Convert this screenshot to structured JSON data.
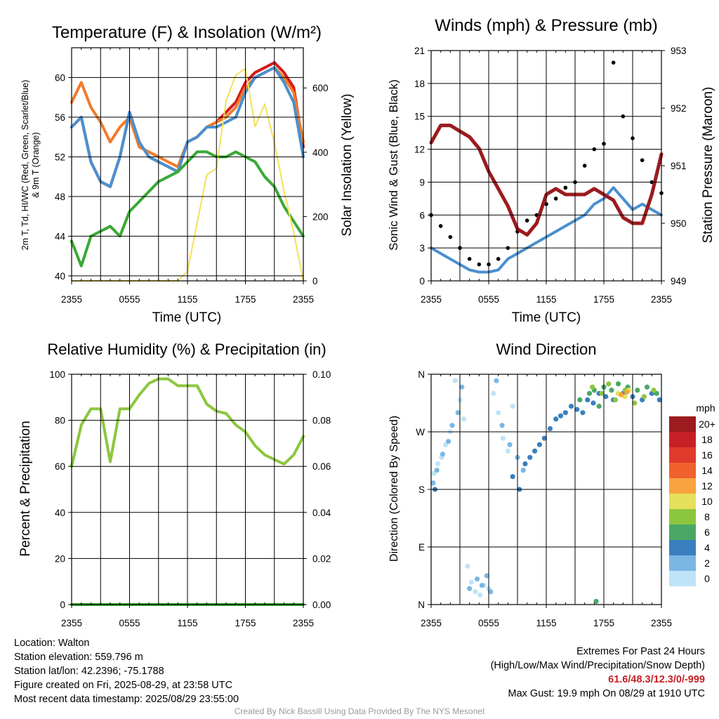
{
  "panels": {
    "temp": {
      "title": "Temperature (F) & Insolation (W/m²)",
      "ylabel_line1": "2m T, Td, HI/WC (Red, Green, Scarlet/Blue)",
      "ylabel_line2": "& 9m T (Orange)",
      "y2label": "Solar Insolation (Yellow)",
      "xlabel": "Time (UTC)"
    },
    "wind": {
      "title": "Winds (mph) & Pressure (mb)",
      "ylabel": "Sonic Wind & Gust (Blue, Black)",
      "y2label": "Station Pressure (Maroon)",
      "xlabel": "Time (UTC)"
    },
    "rh": {
      "title": "Relative Humidity (%) & Precipitation (in)",
      "ylabel": "Percent & Precipitation"
    },
    "dir": {
      "title": "Wind Direction",
      "ylabel": "Direction (Colored By Speed)",
      "legend_title": "mph"
    }
  },
  "chart_data": [
    {
      "type": "line",
      "title": "Temperature (F) & Insolation (W/m2)",
      "xlabel": "Time (UTC)",
      "ylabel": "2m T, Td, HI/WC (Red, Green, Scarlet/Blue) & 9m T (Orange)",
      "y2label": "Solar Insolation (Yellow)",
      "x_ticks": [
        "2355",
        "0555",
        "1155",
        "1755",
        "2355"
      ],
      "x_hours": [
        0,
        1,
        2,
        3,
        4,
        5,
        6,
        7,
        8,
        9,
        10,
        11,
        12,
        13,
        14,
        15,
        16,
        17,
        18,
        19,
        20,
        21,
        22,
        23,
        24
      ],
      "ylim": [
        39.5,
        63
      ],
      "y_ticks": [
        40,
        44,
        48,
        52,
        56,
        60
      ],
      "y2lim": [
        0,
        725
      ],
      "y2_ticks": [
        0,
        200,
        400,
        600
      ],
      "grid": true,
      "series": [
        {
          "name": "2m T",
          "color": "#d7191c",
          "axis": "left",
          "values": [
            55.0,
            56.0,
            51.5,
            49.5,
            49.0,
            52.0,
            56.5,
            53.5,
            52.0,
            51.5,
            51.0,
            50.5,
            53.5,
            54.0,
            55.0,
            55.5,
            56.5,
            57.5,
            59.5,
            60.5,
            61.0,
            61.5,
            60.5,
            59.0,
            53.0
          ]
        },
        {
          "name": "9m T",
          "color": "#f07c29",
          "axis": "left",
          "values": [
            57.5,
            59.5,
            57.0,
            55.5,
            53.5,
            55.0,
            56.0,
            53.0,
            52.5,
            52.0,
            51.5,
            51.0,
            53.5,
            54.0,
            55.0,
            55.5,
            56.0,
            57.0,
            59.0,
            60.0,
            60.5,
            61.0,
            60.0,
            58.5,
            53.5
          ]
        },
        {
          "name": "HI/WC",
          "color": "#4a90cf",
          "axis": "left",
          "values": [
            55.0,
            56.0,
            51.5,
            49.5,
            49.0,
            52.0,
            56.5,
            53.5,
            52.0,
            51.5,
            51.0,
            50.5,
            53.5,
            54.0,
            55.0,
            55.0,
            55.5,
            56.0,
            58.5,
            60.0,
            60.5,
            61.0,
            59.5,
            57.5,
            52.0
          ]
        },
        {
          "name": "Td",
          "color": "#3aa935",
          "axis": "left",
          "values": [
            43.5,
            41.0,
            44.0,
            44.5,
            45.0,
            44.0,
            46.5,
            47.5,
            48.5,
            49.5,
            50.0,
            50.5,
            51.5,
            52.5,
            52.5,
            52.0,
            52.0,
            52.5,
            52.0,
            51.5,
            50.0,
            49.0,
            47.0,
            45.5,
            44.0
          ]
        },
        {
          "name": "Solar Insolation",
          "color": "#f5e05a",
          "axis": "right",
          "values": [
            0,
            0,
            0,
            0,
            0,
            0,
            0,
            0,
            0,
            0,
            0,
            0,
            30,
            180,
            330,
            350,
            560,
            640,
            660,
            480,
            550,
            430,
            280,
            150,
            0
          ]
        }
      ]
    },
    {
      "type": "line",
      "title": "Winds (mph) & Pressure (mb)",
      "xlabel": "Time (UTC)",
      "ylabel": "Sonic Wind & Gust (Blue, Black)",
      "y2label": "Station Pressure (Maroon)",
      "x_ticks": [
        "2355",
        "0555",
        "1155",
        "1755",
        "2355"
      ],
      "x_hours": [
        0,
        1,
        2,
        3,
        4,
        5,
        6,
        7,
        8,
        9,
        10,
        11,
        12,
        13,
        14,
        15,
        16,
        17,
        18,
        19,
        20,
        21,
        22,
        23,
        24
      ],
      "ylim": [
        0,
        21
      ],
      "y_ticks": [
        0,
        3,
        6,
        9,
        12,
        15,
        18,
        21
      ],
      "y2lim": [
        949,
        953
      ],
      "y2_ticks": [
        949,
        950,
        951,
        952,
        953
      ],
      "grid": true,
      "series": [
        {
          "name": "Sonic Wind",
          "color": "#4a90cf",
          "axis": "left",
          "values": [
            3.0,
            2.5,
            2.0,
            1.5,
            1.0,
            0.8,
            0.8,
            1.0,
            2.0,
            2.5,
            3.0,
            3.5,
            4.0,
            4.5,
            5.0,
            5.5,
            6.0,
            7.0,
            7.5,
            8.5,
            7.5,
            6.5,
            7.0,
            6.5,
            6.0
          ]
        },
        {
          "name": "Gust",
          "color": "#000000",
          "axis": "left",
          "values": [
            6.0,
            5.0,
            4.0,
            3.0,
            2.0,
            1.5,
            1.5,
            2.0,
            3.0,
            4.5,
            5.5,
            6.0,
            7.0,
            7.5,
            8.5,
            9.0,
            10.5,
            12.0,
            12.5,
            19.9,
            15.0,
            13.0,
            11.0,
            9.0,
            8.0
          ]
        },
        {
          "name": "Station Pressure",
          "color": "#9b1b1e",
          "axis": "right",
          "values": [
            951.4,
            951.7,
            951.7,
            951.6,
            951.5,
            951.3,
            950.9,
            950.6,
            950.3,
            949.9,
            949.8,
            950.0,
            950.5,
            950.6,
            950.5,
            950.5,
            950.5,
            950.6,
            950.5,
            950.4,
            950.1,
            950.0,
            950.0,
            950.5,
            951.2
          ]
        }
      ]
    },
    {
      "type": "line",
      "title": "Relative Humidity (%) & Precipitation (in)",
      "ylabel": "Percent & Precipitation",
      "x_ticks": [
        "2355",
        "0555",
        "1155",
        "1755",
        "2355"
      ],
      "x_hours": [
        0,
        1,
        2,
        3,
        4,
        5,
        6,
        7,
        8,
        9,
        10,
        11,
        12,
        13,
        14,
        15,
        16,
        17,
        18,
        19,
        20,
        21,
        22,
        23,
        24
      ],
      "ylim": [
        0,
        100
      ],
      "y_ticks": [
        0,
        20,
        40,
        60,
        80,
        100
      ],
      "y2lim": [
        0,
        0.1
      ],
      "y2_ticks": [
        "0.00",
        "0.02",
        "0.04",
        "0.06",
        "0.08",
        "0.10"
      ],
      "grid": true,
      "series": [
        {
          "name": "Relative Humidity",
          "color": "#8cc63f",
          "axis": "left",
          "values": [
            60,
            78,
            85,
            85,
            62,
            85,
            85,
            91,
            96,
            98,
            98,
            95,
            95,
            95,
            87,
            84,
            83,
            78,
            75,
            69,
            65,
            63,
            61,
            65,
            73
          ]
        },
        {
          "name": "Precipitation",
          "color": "#3aa935",
          "axis": "right",
          "values": [
            0,
            0,
            0,
            0,
            0,
            0,
            0,
            0,
            0,
            0,
            0,
            0,
            0,
            0,
            0,
            0,
            0,
            0,
            0,
            0,
            0,
            0,
            0,
            0,
            0
          ]
        }
      ]
    },
    {
      "type": "scatter",
      "title": "Wind Direction",
      "ylabel": "Direction (Colored By Speed)",
      "x_ticks": [
        "2355",
        "0555",
        "1155",
        "1755",
        "2355"
      ],
      "y_ticks": [
        "N",
        "E",
        "S",
        "W",
        "N"
      ],
      "ylim": [
        0,
        360
      ],
      "grid": true,
      "legend": {
        "title": "mph",
        "position": "right",
        "labels": [
          "20+",
          "18",
          "16",
          "14",
          "12",
          "10",
          "8",
          "6",
          "4",
          "2",
          "0"
        ],
        "colors": [
          "#9b1b1e",
          "#c62026",
          "#e03a2c",
          "#f0612d",
          "#f7a33f",
          "#e6e05a",
          "#8cc63f",
          "#4aa866",
          "#3a7fbf",
          "#7ab7e3",
          "#bfe3f7"
        ]
      },
      "series": [
        {
          "name": "2 mph",
          "color": "#bfe3f7",
          "points": [
            [
              0.3,
              205
            ],
            [
              0.7,
              220
            ],
            [
              1.1,
              230
            ],
            [
              1.5,
              250
            ],
            [
              2.0,
              270
            ],
            [
              2.5,
              350
            ],
            [
              3.0,
              320
            ],
            [
              3.4,
              290
            ],
            [
              3.8,
              60
            ],
            [
              4.2,
              35
            ],
            [
              4.6,
              20
            ],
            [
              5.1,
              15
            ],
            [
              5.5,
              30
            ],
            [
              6.0,
              25
            ],
            [
              6.5,
              330
            ],
            [
              7.0,
              300
            ],
            [
              7.5,
              260
            ],
            [
              8.0,
              240
            ],
            [
              8.5,
              310
            ]
          ]
        },
        {
          "name": "3 mph",
          "color": "#7ab7e3",
          "points": [
            [
              0.2,
              190
            ],
            [
              0.6,
              210
            ],
            [
              1.2,
              235
            ],
            [
              1.8,
              255
            ],
            [
              2.2,
              280
            ],
            [
              2.8,
              300
            ],
            [
              3.2,
              340
            ],
            [
              4.0,
              25
            ],
            [
              4.8,
              40
            ],
            [
              5.3,
              30
            ],
            [
              5.8,
              45
            ],
            [
              6.2,
              20
            ],
            [
              6.8,
              350
            ],
            [
              7.4,
              280
            ],
            [
              8.2,
              250
            ],
            [
              9.0,
              230
            ],
            [
              9.6,
              210
            ]
          ]
        },
        {
          "name": "4 mph",
          "color": "#3a7fbf",
          "points": [
            [
              0.4,
              180
            ],
            [
              8.5,
              200
            ],
            [
              9.2,
              180
            ],
            [
              9.8,
              220
            ],
            [
              10.3,
              230
            ],
            [
              10.8,
              240
            ],
            [
              11.3,
              250
            ],
            [
              11.8,
              260
            ],
            [
              12.4,
              275
            ],
            [
              13.0,
              290
            ],
            [
              13.5,
              295
            ],
            [
              14.0,
              300
            ],
            [
              14.6,
              310
            ],
            [
              15.2,
              305
            ],
            [
              15.8,
              300
            ],
            [
              16.3,
              320
            ],
            [
              16.9,
              315
            ],
            [
              17.5,
              330
            ],
            [
              18.2,
              325
            ],
            [
              19.0,
              320
            ],
            [
              20.0,
              330
            ],
            [
              21.0,
              325
            ],
            [
              22.0,
              320
            ],
            [
              23.0,
              330
            ],
            [
              23.8,
              320
            ]
          ]
        },
        {
          "name": "6 mph",
          "color": "#4aa866",
          "points": [
            [
              15.5,
              320
            ],
            [
              16.5,
              330
            ],
            [
              17.0,
              335
            ],
            [
              17.5,
              310
            ],
            [
              18.0,
              340
            ],
            [
              18.8,
              335
            ],
            [
              19.5,
              345
            ],
            [
              20.5,
              340
            ],
            [
              21.5,
              335
            ],
            [
              22.5,
              340
            ],
            [
              23.5,
              330
            ],
            [
              17.2,
              5
            ]
          ]
        },
        {
          "name": "8 mph",
          "color": "#8cc63f",
          "points": [
            [
              16.8,
              340
            ],
            [
              17.8,
              330
            ],
            [
              18.5,
              345
            ],
            [
              19.2,
              320
            ],
            [
              20.2,
              335
            ],
            [
              21.2,
              315
            ],
            [
              22.2,
              325
            ],
            [
              23.2,
              335
            ]
          ]
        },
        {
          "name": "10 mph",
          "color": "#e6e05a",
          "points": [
            [
              19.5,
              330
            ],
            [
              20.2,
              325
            ],
            [
              20.6,
              335
            ]
          ]
        },
        {
          "name": "12 mph",
          "color": "#f7a33f",
          "points": [
            [
              19.8,
              328
            ],
            [
              20.4,
              332
            ]
          ]
        }
      ]
    }
  ],
  "info_left": {
    "location": "Location: Walton",
    "elevation": "Station elevation: 559.796 m",
    "latlon": "Station lat/lon: 42.2396; -75.1788",
    "created": "Figure created on Fri, 2025-08-29, at 23:58 UTC",
    "recent": "Most recent data timestamp: 2025/08/29 23:55:00"
  },
  "info_right": {
    "title": "Extremes For Past 24 Hours",
    "subtitle": "(High/Low/Max Wind/Precipitation/Snow Depth)",
    "values": "61.6/48.3/12.3/0/-999",
    "gust": "Max Gust: 19.9 mph On 08/29 at 1910 UTC"
  },
  "credit": "Created By Nick Bassill Using Data Provided By The NYS Mesonet"
}
